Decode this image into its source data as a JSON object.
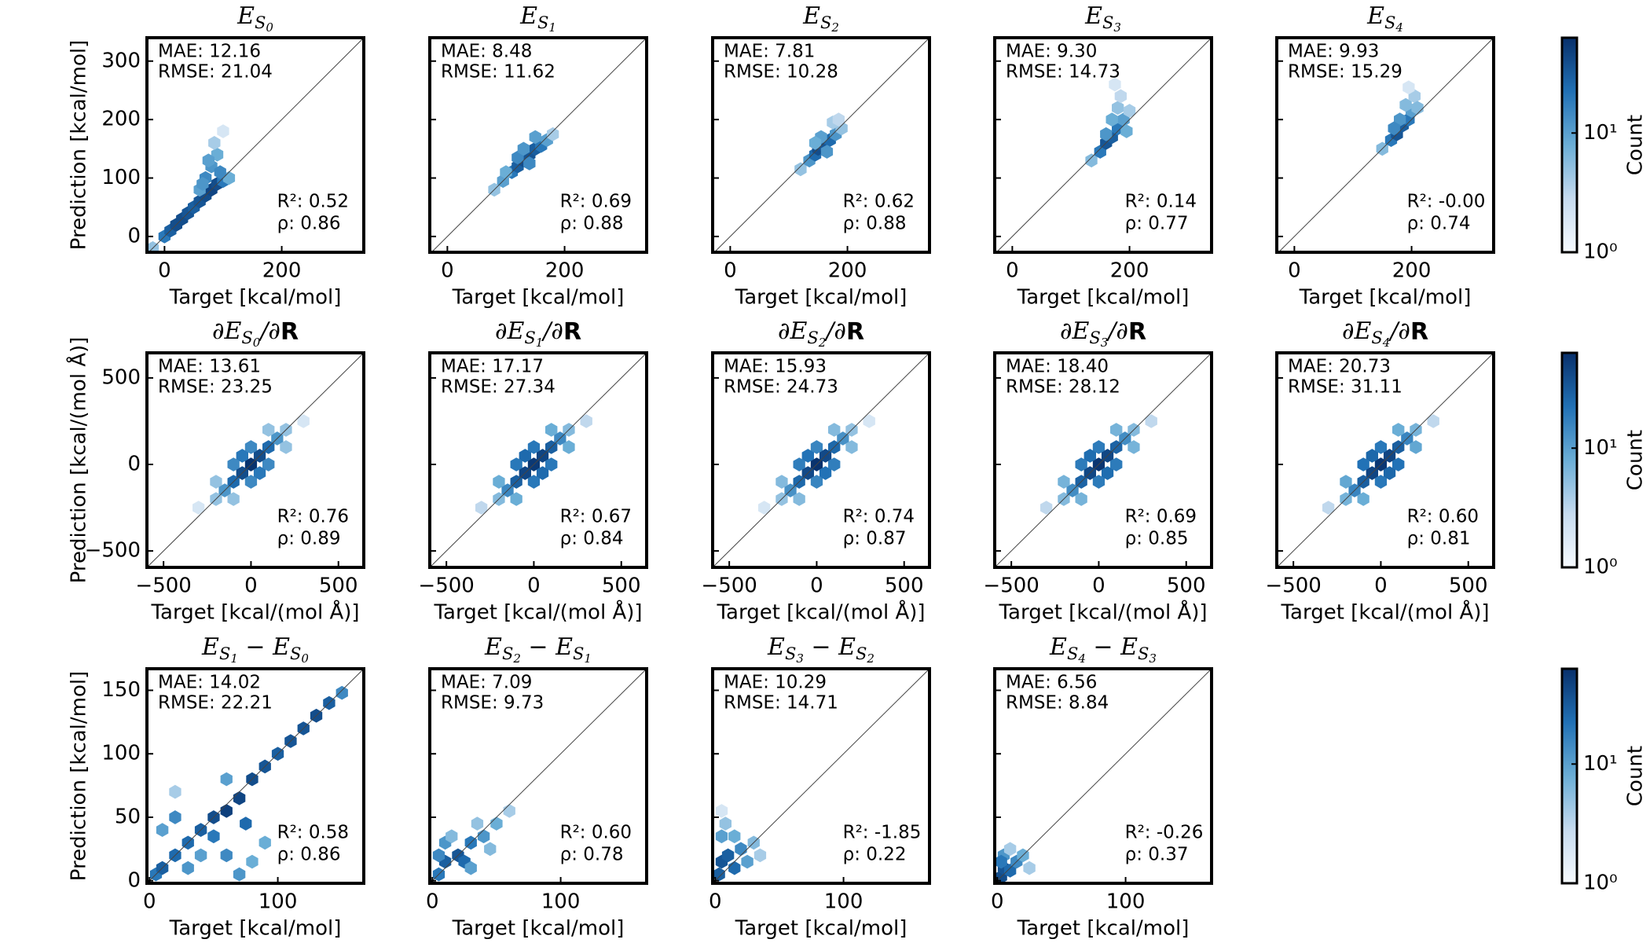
{
  "chart_data": [
    {
      "type": "hexbin",
      "title": [
        "E",
        "S",
        "0"
      ],
      "xlabel": "Target [kcal/mol]",
      "ylabel": "Prediction [kcal/mol]",
      "xlim": [
        -30,
        340
      ],
      "ylim": [
        -27,
        340
      ],
      "xticks": [
        0,
        200
      ],
      "yticks": [
        0,
        100,
        200,
        300
      ],
      "gridsize": 18,
      "colorbar": 14,
      "annotations": [
        "MAE: 12.16",
        "RMSE: 21.04",
        "R²: 0.52",
        "ρ: 0.86"
      ],
      "x": [
        -20,
        0,
        10,
        20,
        30,
        40,
        50,
        60,
        70,
        80,
        90,
        100,
        110,
        60,
        70,
        80,
        90,
        85,
        75,
        95,
        100,
        65
      ],
      "y": [
        -20,
        0,
        10,
        20,
        30,
        40,
        50,
        60,
        70,
        80,
        90,
        95,
        100,
        80,
        100,
        120,
        140,
        160,
        130,
        110,
        180,
        90
      ],
      "counts": [
        5,
        20,
        30,
        40,
        40,
        35,
        30,
        35,
        40,
        45,
        40,
        20,
        8,
        10,
        15,
        12,
        8,
        4,
        10,
        15,
        2,
        12
      ]
    },
    {
      "type": "hexbin",
      "title": [
        "E",
        "S",
        "1"
      ],
      "xlabel": "Target [kcal/mol]",
      "xlim": [
        -30,
        340
      ],
      "ylim": [
        -27,
        340
      ],
      "xticks": [
        0,
        200
      ],
      "yticks": [
        0,
        100,
        200,
        300
      ],
      "gridsize": 18,
      "colorbar": 14,
      "annotations": [
        "MAE: 8.48",
        "RMSE: 11.62",
        "R²: 0.69",
        "ρ: 0.88"
      ],
      "x": [
        80,
        95,
        110,
        120,
        130,
        140,
        150,
        160,
        170,
        180,
        120,
        140,
        150,
        130,
        100
      ],
      "y": [
        80,
        95,
        110,
        120,
        130,
        140,
        150,
        155,
        165,
        175,
        135,
        125,
        170,
        150,
        110
      ],
      "counts": [
        5,
        10,
        20,
        30,
        40,
        35,
        30,
        20,
        10,
        4,
        15,
        15,
        10,
        12,
        8
      ]
    },
    {
      "type": "hexbin",
      "title": [
        "E",
        "S",
        "2"
      ],
      "xlabel": "Target [kcal/mol]",
      "xlim": [
        -30,
        340
      ],
      "ylim": [
        -27,
        340
      ],
      "xticks": [
        0,
        200
      ],
      "yticks": [
        0,
        100,
        200,
        300
      ],
      "gridsize": 18,
      "colorbar": 14,
      "annotations": [
        "MAE: 7.81",
        "RMSE: 10.28",
        "R²: 0.62",
        "ρ: 0.88"
      ],
      "x": [
        120,
        135,
        145,
        150,
        160,
        170,
        180,
        190,
        155,
        165,
        175,
        145,
        185
      ],
      "y": [
        115,
        130,
        140,
        150,
        155,
        165,
        175,
        185,
        170,
        145,
        195,
        160,
        200
      ],
      "counts": [
        5,
        12,
        25,
        40,
        35,
        25,
        12,
        5,
        10,
        12,
        4,
        8,
        3
      ]
    },
    {
      "type": "hexbin",
      "title": [
        "E",
        "S",
        "3"
      ],
      "xlabel": "Target [kcal/mol]",
      "xlim": [
        -30,
        340
      ],
      "ylim": [
        -27,
        340
      ],
      "xticks": [
        0,
        200
      ],
      "yticks": [
        0,
        100,
        200,
        300
      ],
      "gridsize": 18,
      "colorbar": 14,
      "annotations": [
        "MAE: 9.30",
        "RMSE: 14.73",
        "R²: 0.14",
        "ρ: 0.77"
      ],
      "x": [
        135,
        150,
        160,
        170,
        180,
        190,
        170,
        180,
        185,
        175,
        195,
        160,
        200
      ],
      "y": [
        130,
        145,
        160,
        170,
        185,
        200,
        200,
        220,
        240,
        260,
        180,
        175,
        215
      ],
      "counts": [
        6,
        20,
        35,
        30,
        20,
        10,
        8,
        5,
        3,
        2,
        8,
        12,
        4
      ]
    },
    {
      "type": "hexbin",
      "title": [
        "E",
        "S",
        "4"
      ],
      "xlabel": "Target [kcal/mol]",
      "xlim": [
        -30,
        340
      ],
      "ylim": [
        -27,
        340
      ],
      "xticks": [
        0,
        200
      ],
      "yticks": [
        0,
        100,
        200,
        300
      ],
      "gridsize": 18,
      "colorbar": 14,
      "annotations": [
        "MAE: 9.93",
        "RMSE: 15.29",
        "R²: -0.00",
        "ρ: 0.74"
      ],
      "x": [
        150,
        165,
        175,
        185,
        195,
        200,
        190,
        205,
        195,
        210,
        180,
        170
      ],
      "y": [
        150,
        165,
        175,
        190,
        200,
        215,
        225,
        240,
        255,
        220,
        200,
        185
      ],
      "counts": [
        6,
        20,
        35,
        30,
        20,
        10,
        6,
        4,
        2,
        6,
        12,
        15
      ]
    },
    {
      "type": "hexbin",
      "title": [
        "∂E",
        "S",
        "0",
        "/∂",
        "R"
      ],
      "xlabel": "Target [kcal/(mol Å)]",
      "ylabel": "Prediction [kcal/(mol Å)]",
      "xlim": [
        -595,
        645
      ],
      "ylim": [
        -595,
        645
      ],
      "xticks": [
        {
          "value": -500,
          "label": "−500"
        },
        0,
        500
      ],
      "yticks": [
        {
          "value": -500,
          "label": "−500"
        },
        0,
        500
      ],
      "gridsize": 18,
      "colorbar": 15,
      "annotations": [
        "MAE: 13.61",
        "RMSE: 23.25",
        "R²: 0.76",
        "ρ: 0.89"
      ],
      "x": [
        0,
        -50,
        50,
        -100,
        100,
        -150,
        150,
        -200,
        200,
        -100,
        100,
        0,
        0,
        -200,
        200,
        -100,
        100,
        -300,
        300,
        -50,
        50
      ],
      "y": [
        0,
        -50,
        50,
        -100,
        100,
        -150,
        150,
        -200,
        200,
        0,
        0,
        -100,
        100,
        -100,
        100,
        -200,
        200,
        -250,
        250,
        50,
        -50
      ],
      "counts": [
        60,
        40,
        40,
        25,
        25,
        12,
        12,
        5,
        5,
        15,
        15,
        15,
        15,
        5,
        5,
        5,
        5,
        2,
        2,
        20,
        20
      ]
    },
    {
      "type": "hexbin",
      "title": [
        "∂E",
        "S",
        "1",
        "/∂",
        "R"
      ],
      "xlabel": "Target [kcal/(mol Å)]",
      "xlim": [
        -595,
        645
      ],
      "ylim": [
        -595,
        645
      ],
      "xticks": [
        {
          "value": -500,
          "label": "−500"
        },
        0,
        500
      ],
      "yticks": [
        {
          "value": -500,
          "label": "−500"
        },
        0,
        500
      ],
      "gridsize": 18,
      "colorbar": 15,
      "annotations": [
        "MAE: 17.17",
        "RMSE: 27.34",
        "R²: 0.67",
        "ρ: 0.84"
      ],
      "x": [
        0,
        -50,
        50,
        -100,
        100,
        -150,
        150,
        -200,
        200,
        -100,
        100,
        0,
        0,
        -200,
        200,
        -100,
        100,
        -300,
        300,
        -50,
        50
      ],
      "y": [
        0,
        -50,
        50,
        -100,
        100,
        -150,
        150,
        -200,
        200,
        0,
        0,
        -100,
        100,
        -100,
        100,
        -200,
        200,
        -250,
        250,
        50,
        -50
      ],
      "counts": [
        55,
        45,
        45,
        30,
        30,
        15,
        15,
        6,
        6,
        20,
        20,
        20,
        20,
        8,
        8,
        8,
        8,
        3,
        3,
        25,
        25
      ]
    },
    {
      "type": "hexbin",
      "title": [
        "∂E",
        "S",
        "2",
        "/∂",
        "R"
      ],
      "xlabel": "Target [kcal/(mol Å)]",
      "xlim": [
        -595,
        645
      ],
      "ylim": [
        -595,
        645
      ],
      "xticks": [
        {
          "value": -500,
          "label": "−500"
        },
        0,
        500
      ],
      "yticks": [
        {
          "value": -500,
          "label": "−500"
        },
        0,
        500
      ],
      "gridsize": 18,
      "colorbar": 15,
      "annotations": [
        "MAE: 15.93",
        "RMSE: 24.73",
        "R²: 0.74",
        "ρ: 0.87"
      ],
      "x": [
        0,
        -50,
        50,
        -100,
        100,
        -150,
        150,
        -200,
        200,
        -100,
        100,
        0,
        0,
        -200,
        200,
        -100,
        100,
        -300,
        300,
        -50,
        50
      ],
      "y": [
        0,
        -50,
        50,
        -100,
        100,
        -150,
        150,
        -200,
        200,
        0,
        0,
        -100,
        100,
        -100,
        100,
        -200,
        200,
        -250,
        250,
        50,
        -50
      ],
      "counts": [
        60,
        42,
        42,
        26,
        26,
        13,
        13,
        5,
        5,
        18,
        18,
        16,
        16,
        6,
        6,
        6,
        6,
        2,
        2,
        22,
        22
      ]
    },
    {
      "type": "hexbin",
      "title": [
        "∂E",
        "S",
        "3",
        "/∂",
        "R"
      ],
      "xlabel": "Target [kcal/(mol Å)]",
      "xlim": [
        -595,
        645
      ],
      "ylim": [
        -595,
        645
      ],
      "xticks": [
        {
          "value": -500,
          "label": "−500"
        },
        0,
        500
      ],
      "yticks": [
        {
          "value": -500,
          "label": "−500"
        },
        0,
        500
      ],
      "gridsize": 18,
      "colorbar": 15,
      "annotations": [
        "MAE: 18.40",
        "RMSE: 28.12",
        "R²: 0.69",
        "ρ: 0.85"
      ],
      "x": [
        0,
        -50,
        50,
        -100,
        100,
        -150,
        150,
        -200,
        200,
        -100,
        100,
        0,
        0,
        -200,
        200,
        -100,
        100,
        -300,
        300,
        -50,
        50
      ],
      "y": [
        0,
        -50,
        50,
        -100,
        100,
        -150,
        150,
        -200,
        200,
        0,
        0,
        -100,
        100,
        -100,
        100,
        -200,
        200,
        -250,
        250,
        50,
        -50
      ],
      "counts": [
        58,
        44,
        44,
        28,
        28,
        14,
        14,
        6,
        6,
        19,
        19,
        19,
        19,
        7,
        7,
        7,
        7,
        3,
        3,
        24,
        24
      ]
    },
    {
      "type": "hexbin",
      "title": [
        "∂E",
        "S",
        "4",
        "/∂",
        "R"
      ],
      "xlabel": "Target [kcal/(mol Å)]",
      "xlim": [
        -595,
        645
      ],
      "ylim": [
        -595,
        645
      ],
      "xticks": [
        {
          "value": -500,
          "label": "−500"
        },
        0,
        500
      ],
      "yticks": [
        {
          "value": -500,
          "label": "−500"
        },
        0,
        500
      ],
      "gridsize": 18,
      "colorbar": 15,
      "annotations": [
        "MAE: 20.73",
        "RMSE: 31.11",
        "R²: 0.60",
        "ρ: 0.81"
      ],
      "x": [
        0,
        -50,
        50,
        -100,
        100,
        -150,
        150,
        -200,
        200,
        -100,
        100,
        0,
        0,
        -200,
        200,
        -100,
        100,
        -300,
        300,
        -50,
        50
      ],
      "y": [
        0,
        -50,
        50,
        -100,
        100,
        -150,
        150,
        -200,
        200,
        0,
        0,
        -100,
        100,
        -100,
        100,
        -200,
        200,
        -250,
        250,
        50,
        -50
      ],
      "counts": [
        56,
        45,
        45,
        30,
        30,
        16,
        16,
        7,
        7,
        22,
        22,
        20,
        20,
        9,
        9,
        8,
        8,
        3,
        3,
        26,
        26
      ]
    },
    {
      "type": "hexbin",
      "title": [
        "E",
        "S",
        "1",
        " − E",
        "S",
        "0"
      ],
      "xlabel": "Target [kcal/mol]",
      "ylabel": "Prediction [kcal/mol]",
      "xlim": [
        -2,
        167
      ],
      "ylim": [
        -2,
        167
      ],
      "xticks": [
        0,
        100
      ],
      "yticks": [
        0,
        50,
        100,
        150
      ],
      "gridsize": 18,
      "colorbar": 16,
      "annotations": [
        "MAE: 14.02",
        "RMSE: 22.21",
        "R²: 0.58",
        "ρ: 0.86"
      ],
      "x": [
        5,
        10,
        20,
        30,
        40,
        50,
        60,
        70,
        80,
        90,
        100,
        110,
        120,
        130,
        140,
        150,
        10,
        20,
        40,
        60,
        70,
        80,
        30,
        50,
        75,
        90,
        20,
        60
      ],
      "y": [
        5,
        10,
        20,
        30,
        40,
        50,
        55,
        65,
        80,
        90,
        100,
        110,
        120,
        130,
        140,
        148,
        40,
        50,
        20,
        20,
        5,
        15,
        10,
        35,
        45,
        30,
        70,
        80
      ],
      "counts": [
        20,
        30,
        25,
        25,
        30,
        40,
        50,
        45,
        40,
        35,
        30,
        35,
        35,
        40,
        30,
        15,
        10,
        15,
        10,
        15,
        12,
        8,
        12,
        20,
        25,
        8,
        4,
        10
      ]
    },
    {
      "type": "hexbin",
      "title": [
        "E",
        "S",
        "2",
        " − E",
        "S",
        "1"
      ],
      "xlabel": "Target [kcal/mol]",
      "xlim": [
        -2,
        167
      ],
      "ylim": [
        -2,
        167
      ],
      "xticks": [
        0,
        100
      ],
      "yticks": [
        0,
        50,
        100,
        150
      ],
      "gridsize": 18,
      "colorbar": 16,
      "annotations": [
        "MAE: 7.09",
        "RMSE: 9.73",
        "R²: 0.60",
        "ρ: 0.78"
      ],
      "x": [
        5,
        10,
        20,
        25,
        30,
        40,
        50,
        60,
        10,
        30,
        15,
        45,
        5,
        35
      ],
      "y": [
        5,
        15,
        20,
        15,
        30,
        35,
        45,
        55,
        30,
        10,
        35,
        25,
        20,
        45
      ],
      "counts": [
        20,
        30,
        35,
        25,
        20,
        12,
        8,
        4,
        12,
        10,
        6,
        6,
        15,
        5
      ]
    },
    {
      "type": "hexbin",
      "title": [
        "E",
        "S",
        "3",
        " − E",
        "S",
        "2"
      ],
      "xlabel": "Target [kcal/mol]",
      "xlim": [
        -2,
        167
      ],
      "ylim": [
        -2,
        167
      ],
      "xticks": [
        0,
        100
      ],
      "yticks": [
        0,
        50,
        100,
        150
      ],
      "gridsize": 18,
      "colorbar": 16,
      "annotations": [
        "MAE: 10.29",
        "RMSE: 14.71",
        "R²: -1.85",
        "ρ: 0.22"
      ],
      "x": [
        3,
        5,
        10,
        15,
        20,
        25,
        30,
        5,
        8,
        5,
        35,
        15
      ],
      "y": [
        5,
        15,
        20,
        10,
        25,
        15,
        30,
        35,
        45,
        55,
        20,
        35
      ],
      "counts": [
        30,
        35,
        30,
        25,
        15,
        10,
        6,
        10,
        5,
        2,
        4,
        8
      ]
    },
    {
      "type": "hexbin",
      "title": [
        "E",
        "S",
        "4",
        " − E",
        "S",
        "3"
      ],
      "xlabel": "Target [kcal/mol]",
      "xlim": [
        -2,
        167
      ],
      "ylim": [
        -2,
        167
      ],
      "xticks": [
        0,
        100
      ],
      "yticks": [
        0,
        50,
        100,
        150
      ],
      "gridsize": 18,
      "colorbar": 16,
      "annotations": [
        "MAE: 6.56",
        "RMSE: 8.84",
        "R²: -0.26",
        "ρ: 0.37"
      ],
      "x": [
        3,
        5,
        10,
        15,
        20,
        5,
        25,
        10,
        3
      ],
      "y": [
        3,
        10,
        8,
        15,
        20,
        20,
        10,
        25,
        15
      ],
      "counts": [
        40,
        35,
        25,
        15,
        8,
        12,
        4,
        4,
        20
      ]
    },
    {
      "type": "colorbar",
      "label": "Count",
      "clim": [
        1,
        63
      ],
      "log": true,
      "ticks": [
        {
          "value": 1,
          "label": "10⁰"
        },
        {
          "value": 10,
          "label": "10¹"
        }
      ],
      "colormap": [
        "#f7fbff",
        "#c6dbef",
        "#6baed6",
        "#2171b5",
        "#08306b"
      ]
    },
    {
      "type": "colorbar",
      "label": "Count",
      "clim": [
        1,
        63
      ],
      "log": true,
      "ticks": [
        {
          "value": 1,
          "label": "10⁰"
        },
        {
          "value": 10,
          "label": "10¹"
        }
      ],
      "colormap": [
        "#f7fbff",
        "#c6dbef",
        "#6baed6",
        "#2171b5",
        "#08306b"
      ]
    },
    {
      "type": "colorbar",
      "label": "Count",
      "clim": [
        1,
        63
      ],
      "log": true,
      "ticks": [
        {
          "value": 1,
          "label": "10⁰"
        },
        {
          "value": 10,
          "label": "10¹"
        }
      ],
      "colormap": [
        "#f7fbff",
        "#c6dbef",
        "#6baed6",
        "#2171b5",
        "#08306b"
      ]
    }
  ]
}
